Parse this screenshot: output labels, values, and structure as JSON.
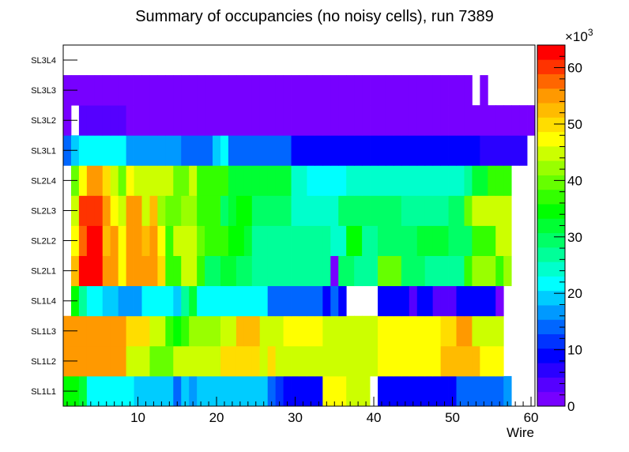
{
  "chart_data": {
    "type": "heatmap",
    "title": "Summary of occupancies (no noisy cells), run 7389",
    "xlabel": "Wire",
    "ylabel": "",
    "x_range": [
      0.5,
      60.5
    ],
    "x_ticks": [
      10,
      20,
      30,
      40,
      50,
      60
    ],
    "y_categories": [
      "SL1L1",
      "SL1L2",
      "SL1L3",
      "SL1L4",
      "SL2L1",
      "SL2L2",
      "SL2L3",
      "SL2L4",
      "SL3L1",
      "SL3L2",
      "SL3L3",
      "SL3L4"
    ],
    "z_range": [
      0,
      64
    ],
    "z_ticks": [
      0,
      10,
      20,
      30,
      40,
      50,
      60
    ],
    "z_unit": "×10",
    "z_exponent": "3",
    "palette": [
      "#7700ff",
      "#5500ff",
      "#2a00ff",
      "#0000ff",
      "#0033ff",
      "#0066ff",
      "#0099ff",
      "#00ccff",
      "#00ffff",
      "#00ffcc",
      "#00ff99",
      "#00ff66",
      "#00ff33",
      "#00ff00",
      "#33ff00",
      "#66ff00",
      "#99ff00",
      "#ccff00",
      "#ffff00",
      "#ffdd00",
      "#ffbb00",
      "#ff9900",
      "#ff6600",
      "#ff3300",
      "#ff0000"
    ],
    "rows": [
      {
        "layer": "SL1L1",
        "values": [
          34,
          34,
          31,
          22,
          22,
          22,
          22,
          22,
          22,
          20,
          20,
          20,
          20,
          20,
          14,
          18,
          16,
          20,
          20,
          20,
          20,
          20,
          20,
          20,
          20,
          20,
          14,
          12,
          8,
          8,
          8,
          8,
          8,
          48,
          48,
          48,
          46,
          46,
          46,
          null,
          8,
          8,
          8,
          8,
          8,
          8,
          8,
          8,
          8,
          8,
          14,
          14,
          14,
          14,
          14,
          14,
          16,
          null,
          null,
          null
        ]
      },
      {
        "layer": "SL1L2",
        "values": [
          54,
          54,
          54,
          54,
          54,
          54,
          54,
          54,
          46,
          46,
          46,
          40,
          40,
          40,
          44,
          46,
          46,
          46,
          46,
          46,
          50,
          50,
          50,
          50,
          50,
          46,
          50,
          44,
          44,
          44,
          44,
          44,
          44,
          44,
          44,
          44,
          44,
          44,
          44,
          44,
          48,
          48,
          48,
          48,
          48,
          48,
          48,
          48,
          52,
          52,
          52,
          52,
          52,
          48,
          48,
          48,
          null,
          null,
          null,
          null
        ]
      },
      {
        "layer": "SL1L3",
        "values": [
          54,
          54,
          54,
          54,
          54,
          54,
          54,
          54,
          50,
          50,
          50,
          44,
          44,
          38,
          34,
          38,
          42,
          42,
          42,
          42,
          46,
          46,
          52,
          52,
          52,
          46,
          46,
          44,
          48,
          48,
          48,
          48,
          48,
          44,
          44,
          44,
          44,
          44,
          44,
          44,
          48,
          48,
          48,
          48,
          48,
          48,
          48,
          48,
          50,
          50,
          56,
          56,
          44,
          44,
          44,
          44,
          null,
          null,
          null,
          null
        ]
      },
      {
        "layer": "SL1L4",
        "values": [
          null,
          34,
          28,
          22,
          22,
          18,
          18,
          16,
          16,
          16,
          22,
          22,
          22,
          22,
          20,
          26,
          32,
          22,
          22,
          22,
          22,
          22,
          22,
          22,
          22,
          22,
          14,
          14,
          14,
          14,
          14,
          14,
          14,
          10,
          14,
          8,
          null,
          null,
          null,
          null,
          10,
          10,
          10,
          10,
          4,
          10,
          8,
          4,
          4,
          4,
          10,
          10,
          10,
          10,
          10,
          2,
          null,
          null,
          null,
          null
        ]
      },
      {
        "layer": "SL2L1",
        "values": [
          null,
          52,
          62,
          62,
          62,
          54,
          56,
          48,
          56,
          56,
          56,
          56,
          50,
          38,
          38,
          44,
          44,
          38,
          30,
          30,
          32,
          32,
          30,
          30,
          26,
          26,
          26,
          26,
          26,
          26,
          26,
          26,
          26,
          26,
          2,
          30,
          30,
          26,
          26,
          26,
          40,
          40,
          40,
          30,
          30,
          30,
          26,
          26,
          26,
          26,
          26,
          38,
          42,
          42,
          42,
          38,
          42,
          null,
          null,
          null
        ]
      },
      {
        "layer": "SL2L2",
        "values": [
          null,
          48,
          58,
          62,
          62,
          52,
          56,
          48,
          56,
          56,
          52,
          56,
          48,
          38,
          44,
          44,
          44,
          40,
          38,
          38,
          38,
          34,
          34,
          32,
          28,
          28,
          28,
          28,
          28,
          28,
          28,
          28,
          28,
          28,
          24,
          24,
          34,
          34,
          28,
          28,
          30,
          30,
          30,
          30,
          30,
          32,
          32,
          32,
          32,
          30,
          30,
          30,
          38,
          38,
          38,
          44,
          44,
          null,
          null,
          null
        ]
      },
      {
        "layer": "SL2L3",
        "values": [
          null,
          46,
          60,
          60,
          60,
          54,
          48,
          46,
          54,
          54,
          46,
          52,
          42,
          40,
          40,
          42,
          42,
          38,
          38,
          38,
          30,
          32,
          34,
          34,
          30,
          30,
          30,
          30,
          30,
          24,
          24,
          24,
          24,
          24,
          24,
          30,
          30,
          30,
          30,
          30,
          30,
          30,
          30,
          26,
          26,
          26,
          26,
          26,
          26,
          30,
          30,
          40,
          44,
          44,
          44,
          44,
          44,
          null,
          null,
          null
        ]
      },
      {
        "layer": "SL2L4",
        "values": [
          null,
          40,
          48,
          56,
          56,
          50,
          44,
          40,
          48,
          46,
          46,
          46,
          46,
          46,
          40,
          40,
          44,
          38,
          36,
          36,
          36,
          32,
          32,
          32,
          32,
          32,
          32,
          32,
          32,
          24,
          24,
          22,
          22,
          22,
          22,
          22,
          24,
          24,
          24,
          24,
          24,
          24,
          24,
          24,
          24,
          24,
          24,
          24,
          24,
          24,
          24,
          28,
          32,
          32,
          36,
          36,
          36,
          null,
          null,
          null
        ]
      },
      {
        "layer": "SL3L1",
        "values": [
          14,
          20,
          22,
          22,
          22,
          22,
          22,
          22,
          16,
          16,
          16,
          16,
          16,
          16,
          16,
          14,
          14,
          14,
          14,
          20,
          22,
          14,
          14,
          14,
          14,
          14,
          14,
          14,
          14,
          10,
          10,
          10,
          10,
          10,
          10,
          10,
          10,
          10,
          10,
          10,
          10,
          10,
          10,
          10,
          10,
          10,
          10,
          10,
          10,
          10,
          10,
          10,
          10,
          6,
          6,
          6,
          6,
          6,
          6,
          null
        ]
      },
      {
        "layer": "SL3L2",
        "values": [
          2,
          null,
          4,
          4,
          4,
          4,
          4,
          4,
          2,
          2,
          2,
          2,
          2,
          2,
          2,
          2,
          2,
          2,
          2,
          2,
          2,
          2,
          2,
          2,
          2,
          2,
          2,
          2,
          2,
          2,
          2,
          2,
          2,
          2,
          2,
          2,
          2,
          2,
          2,
          2,
          2,
          2,
          2,
          2,
          2,
          2,
          2,
          2,
          2,
          2,
          2,
          2,
          2,
          2,
          2,
          2,
          2,
          2,
          2,
          2
        ]
      },
      {
        "layer": "SL3L3",
        "values": [
          2,
          2,
          2,
          2,
          2,
          2,
          2,
          2,
          2,
          2,
          2,
          2,
          2,
          2,
          2,
          2,
          2,
          2,
          2,
          2,
          2,
          2,
          2,
          2,
          2,
          2,
          2,
          2,
          2,
          2,
          2,
          2,
          2,
          2,
          2,
          2,
          2,
          2,
          2,
          2,
          2,
          2,
          2,
          2,
          2,
          2,
          2,
          2,
          2,
          2,
          2,
          2,
          null,
          2,
          null,
          null,
          null,
          null,
          null,
          null
        ]
      },
      {
        "layer": "SL3L4",
        "values": [
          null,
          null,
          null,
          null,
          null,
          null,
          null,
          null,
          null,
          null,
          null,
          null,
          null,
          null,
          null,
          null,
          null,
          null,
          null,
          null,
          null,
          null,
          null,
          null,
          null,
          null,
          null,
          null,
          null,
          null,
          null,
          null,
          null,
          null,
          null,
          null,
          null,
          null,
          null,
          null,
          null,
          null,
          null,
          null,
          null,
          null,
          null,
          null,
          null,
          null,
          null,
          null,
          null,
          null,
          null,
          null,
          null,
          null,
          null,
          null
        ]
      }
    ]
  }
}
